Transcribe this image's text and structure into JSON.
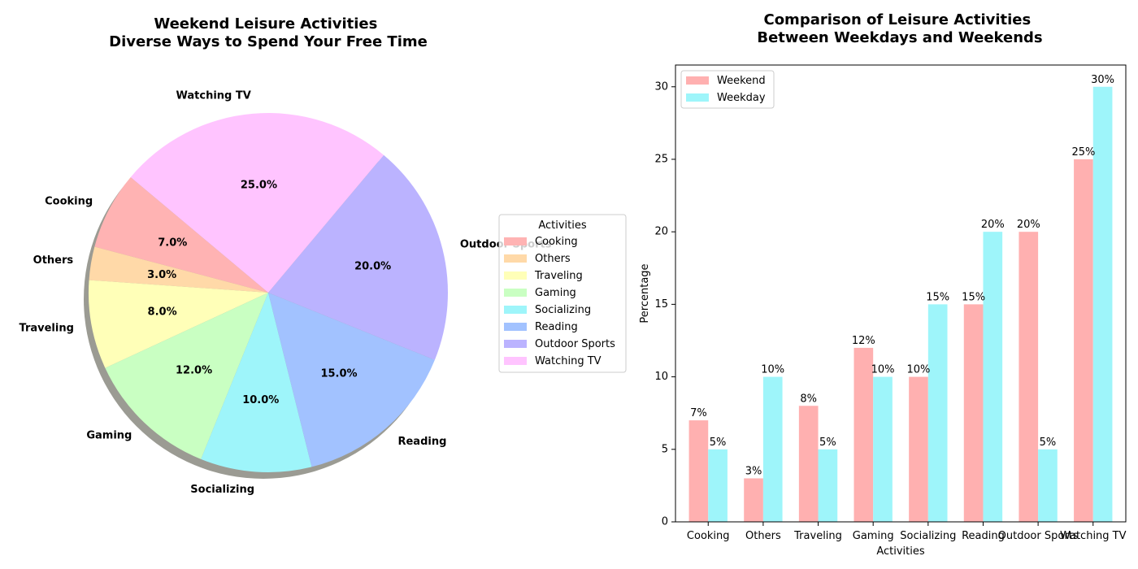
{
  "chart_data": [
    {
      "type": "pie",
      "title": "Weekend Leisure Activities\nDiverse Ways to Spend Your Free Time",
      "labels": [
        "Cooking",
        "Others",
        "Traveling",
        "Gaming",
        "Socializing",
        "Reading",
        "Outdoor Sports",
        "Watching TV"
      ],
      "values": [
        7,
        3,
        8,
        12,
        10,
        15,
        20,
        25
      ],
      "pct_labels": [
        "7.0%",
        "3.0%",
        "8.0%",
        "12.0%",
        "10.0%",
        "15.0%",
        "20.0%",
        "25.0%"
      ],
      "colors": [
        "#ffb3b3",
        "#ffd9a8",
        "#ffffb8",
        "#c9ffc2",
        "#9ef5fa",
        "#a2c2ff",
        "#bbb3ff",
        "#ffc4ff"
      ],
      "start_angle": 140,
      "direction": "counterclockwise",
      "shadow": true,
      "legend": {
        "title": "Activities",
        "placement": "right",
        "entries": [
          "Cooking",
          "Others",
          "Traveling",
          "Gaming",
          "Socializing",
          "Reading",
          "Outdoor Sports",
          "Watching TV"
        ]
      }
    },
    {
      "type": "bar",
      "title": "Comparison of Leisure Activities\nBetween Weekdays and Weekends",
      "categories": [
        "Cooking",
        "Others",
        "Traveling",
        "Gaming",
        "Socializing",
        "Reading",
        "Outdoor Sports",
        "Watching TV"
      ],
      "series": [
        {
          "name": "Weekend",
          "values": [
            7,
            3,
            8,
            12,
            10,
            15,
            20,
            25
          ],
          "color": "#ffb0b0",
          "labels": [
            "7%",
            "3%",
            "8%",
            "12%",
            "10%",
            "15%",
            "20%",
            "25%"
          ]
        },
        {
          "name": "Weekday",
          "values": [
            5,
            10,
            5,
            10,
            15,
            20,
            5,
            30
          ],
          "color": "#9ef5fa",
          "labels": [
            "5%",
            "10%",
            "5%",
            "10%",
            "15%",
            "20%",
            "5%",
            "30%"
          ]
        }
      ],
      "xlabel": "Activities",
      "ylabel": "Percentage",
      "ylim": [
        0,
        31.5
      ],
      "yticks": [
        0,
        5,
        10,
        15,
        20,
        25,
        30
      ],
      "grid": false,
      "legend": {
        "placement": "upper-left"
      }
    }
  ]
}
